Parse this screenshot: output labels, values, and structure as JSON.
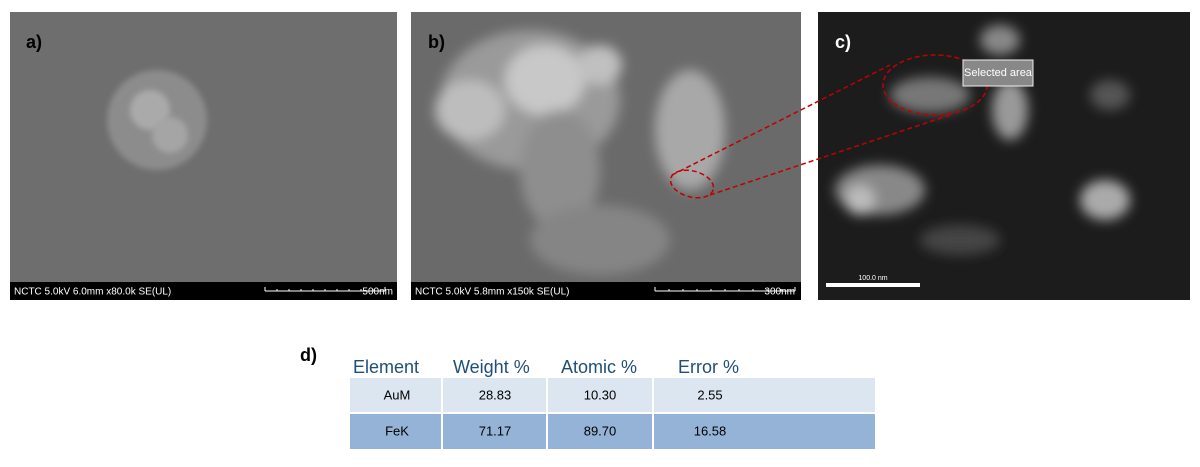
{
  "panels": [
    {
      "label": "a)",
      "info": "NCTC 5.0kV 6.0mm x80.0k SE(UL)",
      "scale": "500nm"
    },
    {
      "label": "b)",
      "info": "NCTC 5.0kV 5.8mm x150k SE(UL)",
      "scale": "300nm"
    },
    {
      "label": "c)",
      "scale": "100.0 nm",
      "callout": "Selected area"
    }
  ],
  "table": {
    "label": "d)",
    "header": [
      "Element",
      "Weight %",
      "Atomic %",
      "Error %"
    ],
    "rows": [
      [
        "AuM",
        "28.83",
        "10.30",
        "2.55"
      ],
      [
        "FeK",
        "71.17",
        "89.70",
        "16.58"
      ]
    ]
  }
}
